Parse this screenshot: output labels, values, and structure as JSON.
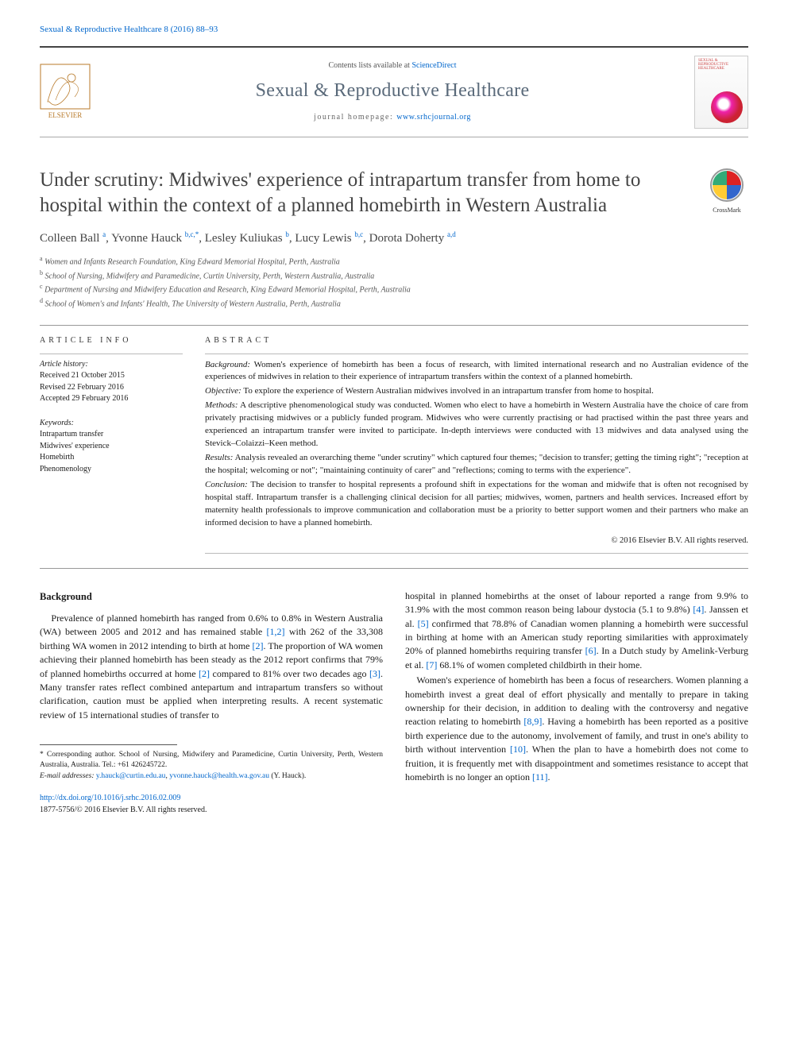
{
  "header": {
    "citation": "Sexual & Reproductive Healthcare 8 (2016) 88–93",
    "contents_available": "Contents lists available at ",
    "sciencedirect": "ScienceDirect",
    "journal_name": "Sexual & Reproductive Healthcare",
    "homepage_label": "journal homepage: ",
    "homepage_url": "www.srhcjournal.org",
    "cover_label": "SEXUAL & REPRODUCTIVE HEALTHCARE"
  },
  "crossmark": {
    "label": "CrossMark"
  },
  "title": "Under scrutiny: Midwives' experience of intrapartum transfer from home to hospital within the context of a planned homebirth in Western Australia",
  "authors": {
    "list": "Colleen Ball ",
    "a1_sup": "a",
    "a2": ", Yvonne Hauck ",
    "a2_sup": "b,c,*",
    "a3": ", Lesley Kuliukas ",
    "a3_sup": "b",
    "a4": ", Lucy Lewis ",
    "a4_sup": "b,c",
    "a5": ", Dorota Doherty ",
    "a5_sup": "a,d"
  },
  "affiliations": {
    "a": "Women and Infants Research Foundation, King Edward Memorial Hospital, Perth, Australia",
    "b": "School of Nursing, Midwifery and Paramedicine, Curtin University, Perth, Western Australia, Australia",
    "c": "Department of Nursing and Midwifery Education and Research, King Edward Memorial Hospital, Perth, Australia",
    "d": "School of Women's and Infants' Health, The University of Western Australia, Perth, Australia"
  },
  "article_info": {
    "heading": "ARTICLE INFO",
    "history_label": "Article history:",
    "received": "Received 21 October 2015",
    "revised": "Revised 22 February 2016",
    "accepted": "Accepted 29 February 2016",
    "keywords_label": "Keywords:",
    "kw1": "Intrapartum transfer",
    "kw2": "Midwives' experience",
    "kw3": "Homebirth",
    "kw4": "Phenomenology"
  },
  "abstract": {
    "heading": "ABSTRACT",
    "background_label": "Background:",
    "background": " Women's experience of homebirth has been a focus of research, with limited international research and no Australian evidence of the experiences of midwives in relation to their experience of intrapartum transfers within the context of a planned homebirth.",
    "objective_label": "Objective:",
    "objective": " To explore the experience of Western Australian midwives involved in an intrapartum transfer from home to hospital.",
    "methods_label": "Methods:",
    "methods": " A descriptive phenomenological study was conducted. Women who elect to have a homebirth in Western Australia have the choice of care from privately practising midwives or a publicly funded program. Midwives who were currently practising or had practised within the past three years and experienced an intrapartum transfer were invited to participate. In-depth interviews were conducted with 13 midwives and data analysed using the Stevick–Colaizzi–Keen method.",
    "results_label": "Results:",
    "results": " Analysis revealed an overarching theme \"under scrutiny\" which captured four themes; \"decision to transfer; getting the timing right\"; \"reception at the hospital; welcoming or not\"; \"maintaining continuity of carer\" and \"reflections; coming to terms with the experience\".",
    "conclusion_label": "Conclusion:",
    "conclusion": " The decision to transfer to hospital represents a profound shift in expectations for the woman and midwife that is often not recognised by hospital staff. Intrapartum transfer is a challenging clinical decision for all parties; midwives, women, partners and health services. Increased effort by maternity health professionals to improve communication and collaboration must be a priority to better support women and their partners who make an informed decision to have a planned homebirth.",
    "copyright": "© 2016 Elsevier B.V. All rights reserved."
  },
  "body": {
    "heading": "Background",
    "col1": "Prevalence of planned homebirth has ranged from 0.6% to 0.8% in Western Australia (WA) between 2005 and 2012 and has remained stable [1,2] with 262 of the 33,308 birthing WA women in 2012 intending to birth at home [2]. The proportion of WA women achieving their planned homebirth has been steady as the 2012 report confirms that 79% of planned homebirths occurred at home [2] compared to 81% over two decades ago [3]. Many transfer rates reflect combined antepartum and intrapartum transfers so without clarification, caution must be applied when interpreting results. A recent systematic review of 15 international studies of transfer to",
    "col2a": "hospital in planned homebirths at the onset of labour reported a range from 9.9% to 31.9% with the most common reason being labour dystocia (5.1 to 9.8%) [4]. Janssen et al. [5] confirmed that 78.8% of Canadian women planning a homebirth were successful in birthing at home with an American study reporting similarities with approximately 20% of planned homebirths requiring transfer [6]. In a Dutch study by Amelink-Verburg et al. [7] 68.1% of women completed childbirth in their home.",
    "col2b": "Women's experience of homebirth has been a focus of researchers. Women planning a homebirth invest a great deal of effort physically and mentally to prepare in taking ownership for their decision, in addition to dealing with the controversy and negative reaction relating to homebirth [8,9]. Having a homebirth has been reported as a positive birth experience due to the autonomy, involvement of family, and trust in one's ability to birth without intervention [10]. When the plan to have a homebirth does not come to fruition, it is frequently met with disappointment and sometimes resistance to accept that homebirth is no longer an option [11]."
  },
  "footnotes": {
    "corr": "* Corresponding author. School of Nursing, Midwifery and Paramedicine, Curtin University, Perth, Western Australia, Australia. Tel.: +61 426245722.",
    "email_label": "E-mail addresses: ",
    "email1": "y.hauck@curtin.edu.au",
    "email_sep": ", ",
    "email2": "yvonne.hauck@health.wa.gov.au",
    "email_tail": " (Y. Hauck).",
    "doi": "http://dx.doi.org/10.1016/j.srhc.2016.02.009",
    "issn": "1877-5756/© 2016 Elsevier B.V. All rights reserved."
  },
  "colors": {
    "link": "#0066cc",
    "heading_gray": "#5a6a7a",
    "text": "#1a1a1a"
  }
}
